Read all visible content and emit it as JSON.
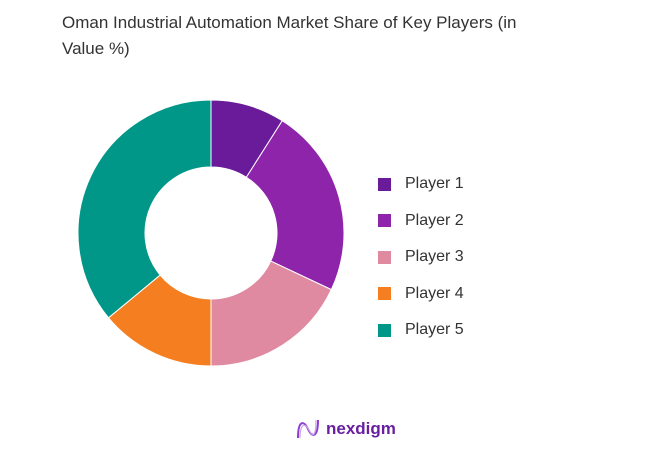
{
  "chart_data": {
    "type": "pie",
    "donut": true,
    "title": "Oman Industrial Automation Market Share of Key Players (in Value %)",
    "categories": [
      "Player 1",
      "Player 2",
      "Player 3",
      "Player 4",
      "Player 5"
    ],
    "values": [
      9,
      23,
      18,
      14,
      36
    ],
    "colors": [
      "#6a1b9a",
      "#8e24aa",
      "#e08aa2",
      "#f57f20",
      "#009688"
    ],
    "legend_position": "right"
  },
  "logo": {
    "text": "nexdigm"
  }
}
